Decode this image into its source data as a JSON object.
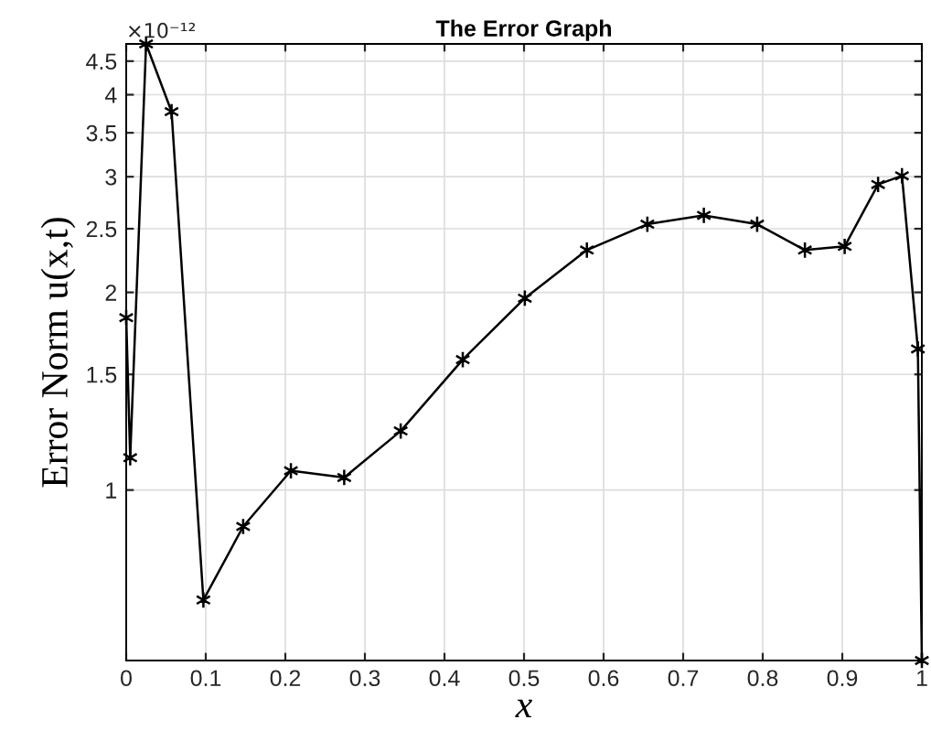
{
  "chart_data": {
    "type": "line",
    "title": "The Error Graph",
    "xlabel": "x",
    "ylabel": "Error Norm u(x,t)",
    "annotations": [
      "×10⁻¹²"
    ],
    "x": [
      0,
      0.005,
      0.025,
      0.057,
      0.097,
      0.147,
      0.207,
      0.274,
      0.345,
      0.423,
      0.501,
      0.579,
      0.655,
      0.726,
      0.793,
      0.853,
      0.903,
      0.945,
      0.975,
      0.995,
      1
    ],
    "series": [
      {
        "color": "#000000",
        "values": [
          1.83,
          1.12,
          4.78,
          3.77,
          0.68,
          0.88,
          1.07,
          1.045,
          1.23,
          1.58,
          1.96,
          2.32,
          2.54,
          2.62,
          2.54,
          2.32,
          2.35,
          2.92,
          3.01,
          1.64,
          0.55
        ]
      }
    ],
    "xlim": [
      0,
      1
    ],
    "xticks": [
      0,
      0.1,
      0.2,
      0.3,
      0.4,
      0.5,
      0.6,
      0.7,
      0.8,
      0.9,
      1
    ],
    "ylim": [
      0.55,
      4.78
    ],
    "yticks": [
      1,
      1.5,
      2,
      2.5,
      3,
      3.5,
      4,
      4.5
    ],
    "log": "y",
    "grid": true,
    "marker": "cross",
    "line_style": "solid"
  }
}
